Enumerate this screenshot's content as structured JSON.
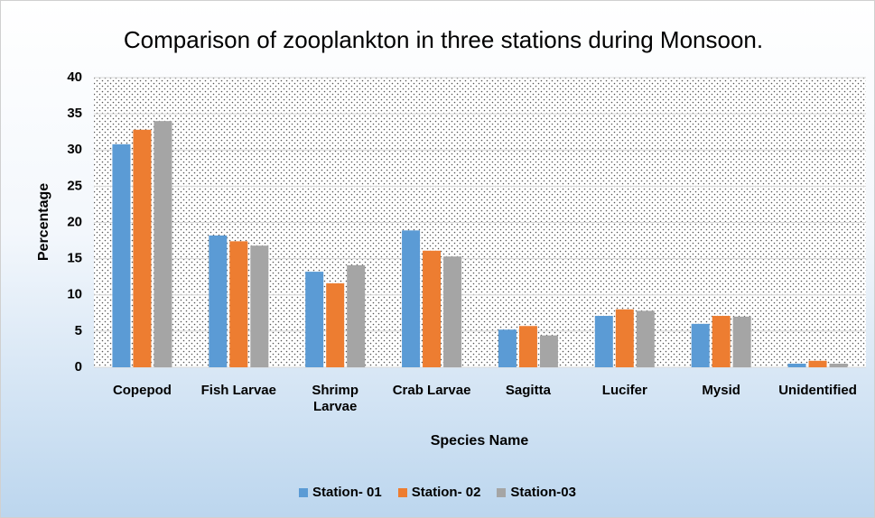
{
  "chart_data": {
    "type": "bar",
    "title": "Comparison of zooplankton in three stations during Monsoon.",
    "x_label": "Species Name",
    "y_label": "Percentage",
    "categories": [
      "Copepod",
      "Fish Larvae",
      "Shrimp Larvae",
      "Crab Larvae",
      "Sagitta",
      "Lucifer",
      "Mysid",
      "Unidentified"
    ],
    "series": [
      {
        "name": "Station- 01",
        "color": "#5b9bd5",
        "values": [
          30.8,
          18.2,
          13.2,
          18.9,
          5.2,
          7.1,
          6.0,
          0.5
        ]
      },
      {
        "name": "Station- 02",
        "color": "#ed7d31",
        "values": [
          32.8,
          17.4,
          11.6,
          16.1,
          5.7,
          8.0,
          7.1,
          0.9
        ]
      },
      {
        "name": "Station-03",
        "color": "#a5a5a5",
        "values": [
          34.0,
          16.8,
          14.1,
          15.3,
          4.4,
          7.8,
          7.0,
          0.5
        ]
      }
    ],
    "ylim": [
      0,
      40
    ],
    "yticks": [
      0,
      5,
      10,
      15,
      20,
      25,
      30,
      35,
      40
    ],
    "grid": true,
    "legend": "bottom"
  }
}
